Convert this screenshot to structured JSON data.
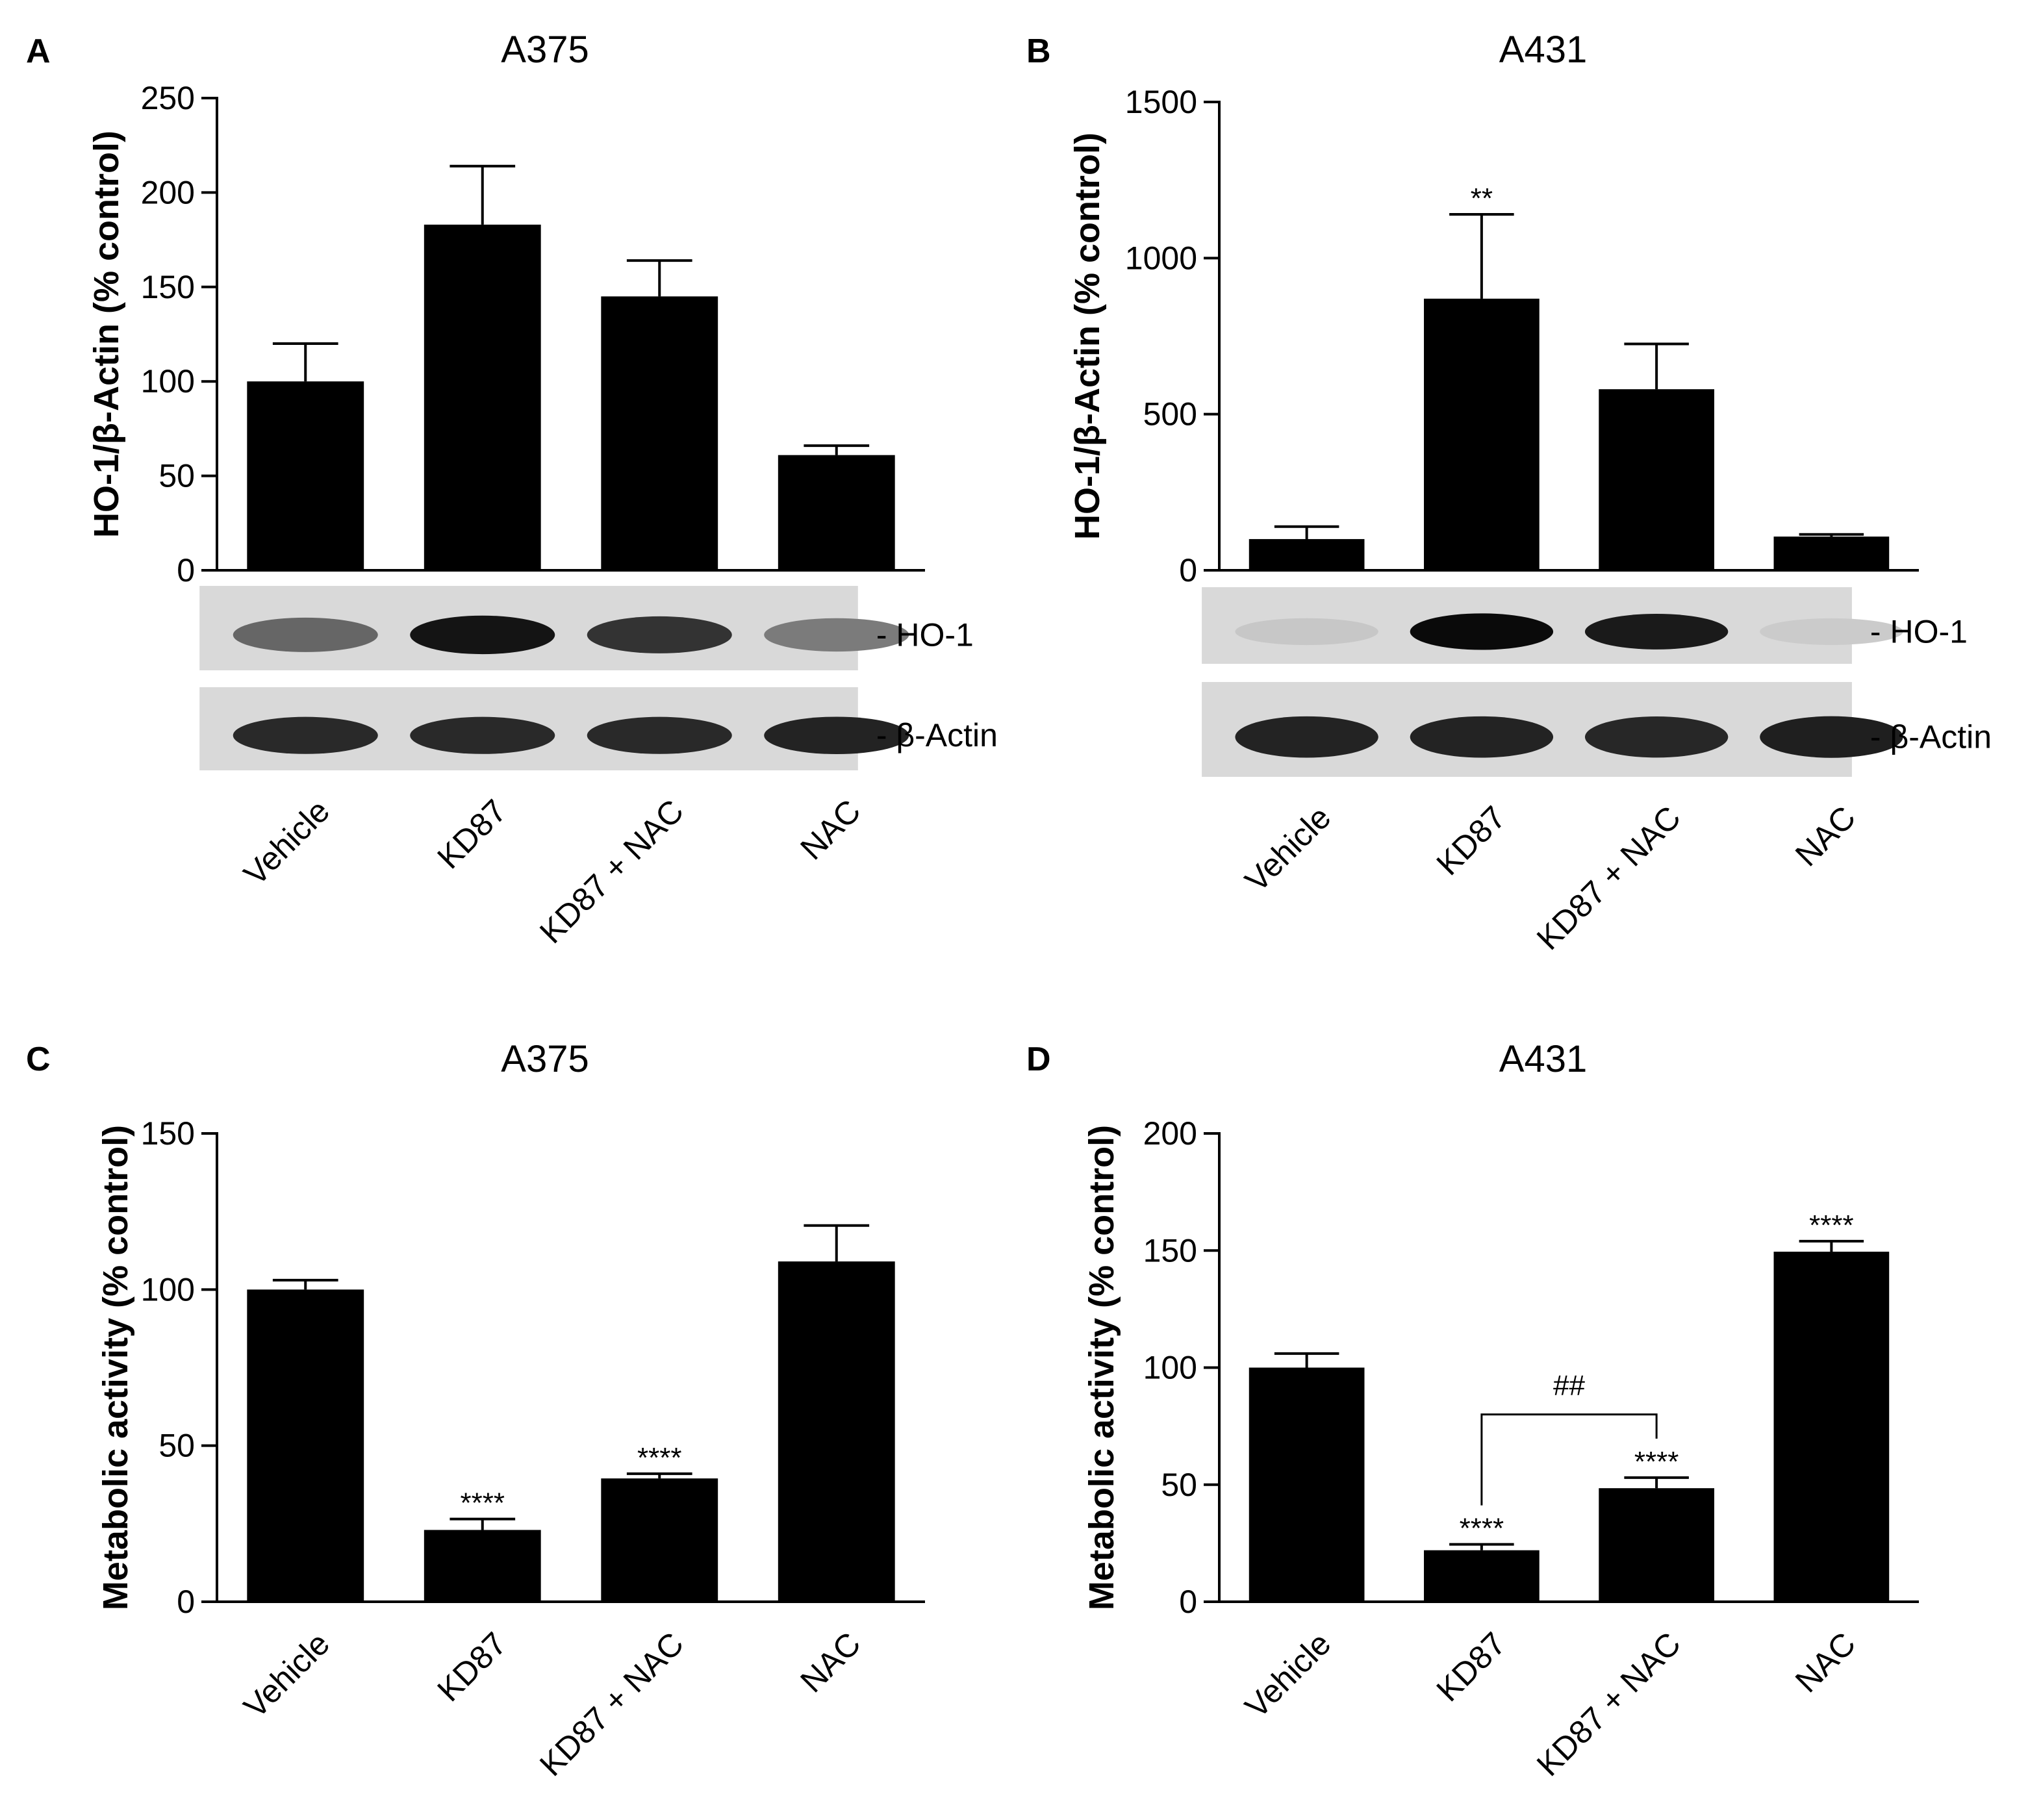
{
  "chart_data": [
    {
      "id": "A",
      "type": "bar",
      "panel_letter": "A",
      "title": "A375",
      "ylabel": "HO-1/β-Actin (% control)",
      "categories": [
        "Vehicle",
        "KD87",
        "KD87 + NAC",
        "NAC"
      ],
      "values": [
        100,
        183,
        145,
        61
      ],
      "errors": [
        20,
        31,
        19,
        5
      ],
      "annotations": [
        "",
        "",
        "",
        ""
      ],
      "ylim": [
        0,
        250
      ],
      "yticks": [
        0,
        50,
        100,
        150,
        200,
        250
      ],
      "blot_labels": [
        "- HO-1",
        "- β-Actin"
      ],
      "ho1_band_darkness": [
        0.55,
        0.95,
        0.8,
        0.45
      ],
      "actin_band_darkness": [
        0.85,
        0.85,
        0.85,
        0.88
      ],
      "bracket": null
    },
    {
      "id": "B",
      "type": "bar",
      "panel_letter": "B",
      "title": "A431",
      "ylabel": "HO-1/β-Actin (% control)",
      "categories": [
        "Vehicle",
        "KD87",
        "KD87 + NAC",
        "NAC"
      ],
      "values": [
        100,
        870,
        580,
        108
      ],
      "errors": [
        40,
        270,
        145,
        7
      ],
      "annotations": [
        "",
        "**",
        "",
        ""
      ],
      "ylim": [
        0,
        1500
      ],
      "yticks": [
        0,
        500,
        1000,
        1500
      ],
      "blot_labels": [
        "- HO-1",
        "- β-Actin"
      ],
      "ho1_band_darkness": [
        0.08,
        1.0,
        0.92,
        0.06
      ],
      "actin_band_darkness": [
        0.88,
        0.88,
        0.86,
        0.9
      ],
      "bracket": null
    },
    {
      "id": "C",
      "type": "bar",
      "panel_letter": "C",
      "title": "A375",
      "ylabel": "Metabolic activity (% control)",
      "categories": [
        "Vehicle",
        "KD87",
        "KD87 + NAC",
        "NAC"
      ],
      "values": [
        100,
        23,
        39.5,
        109
      ],
      "errors": [
        3,
        3.5,
        1.5,
        11.5
      ],
      "annotations": [
        "",
        "****",
        "****",
        ""
      ],
      "ylim": [
        0,
        150
      ],
      "yticks": [
        0,
        50,
        100,
        150
      ],
      "bracket": null
    },
    {
      "id": "D",
      "type": "bar",
      "panel_letter": "D",
      "title": "A431",
      "ylabel": "Metabolic activity (% control)",
      "categories": [
        "Vehicle",
        "KD87",
        "KD87 + NAC",
        "NAC"
      ],
      "values": [
        100,
        22,
        48.5,
        149.5
      ],
      "errors": [
        6,
        2.5,
        4.5,
        4.5
      ],
      "annotations": [
        "",
        "****",
        "****",
        "****"
      ],
      "ylim": [
        0,
        200
      ],
      "yticks": [
        0,
        50,
        100,
        150,
        200
      ],
      "bracket": {
        "from": 1,
        "to": 2,
        "y": 80,
        "label": "##"
      }
    }
  ]
}
